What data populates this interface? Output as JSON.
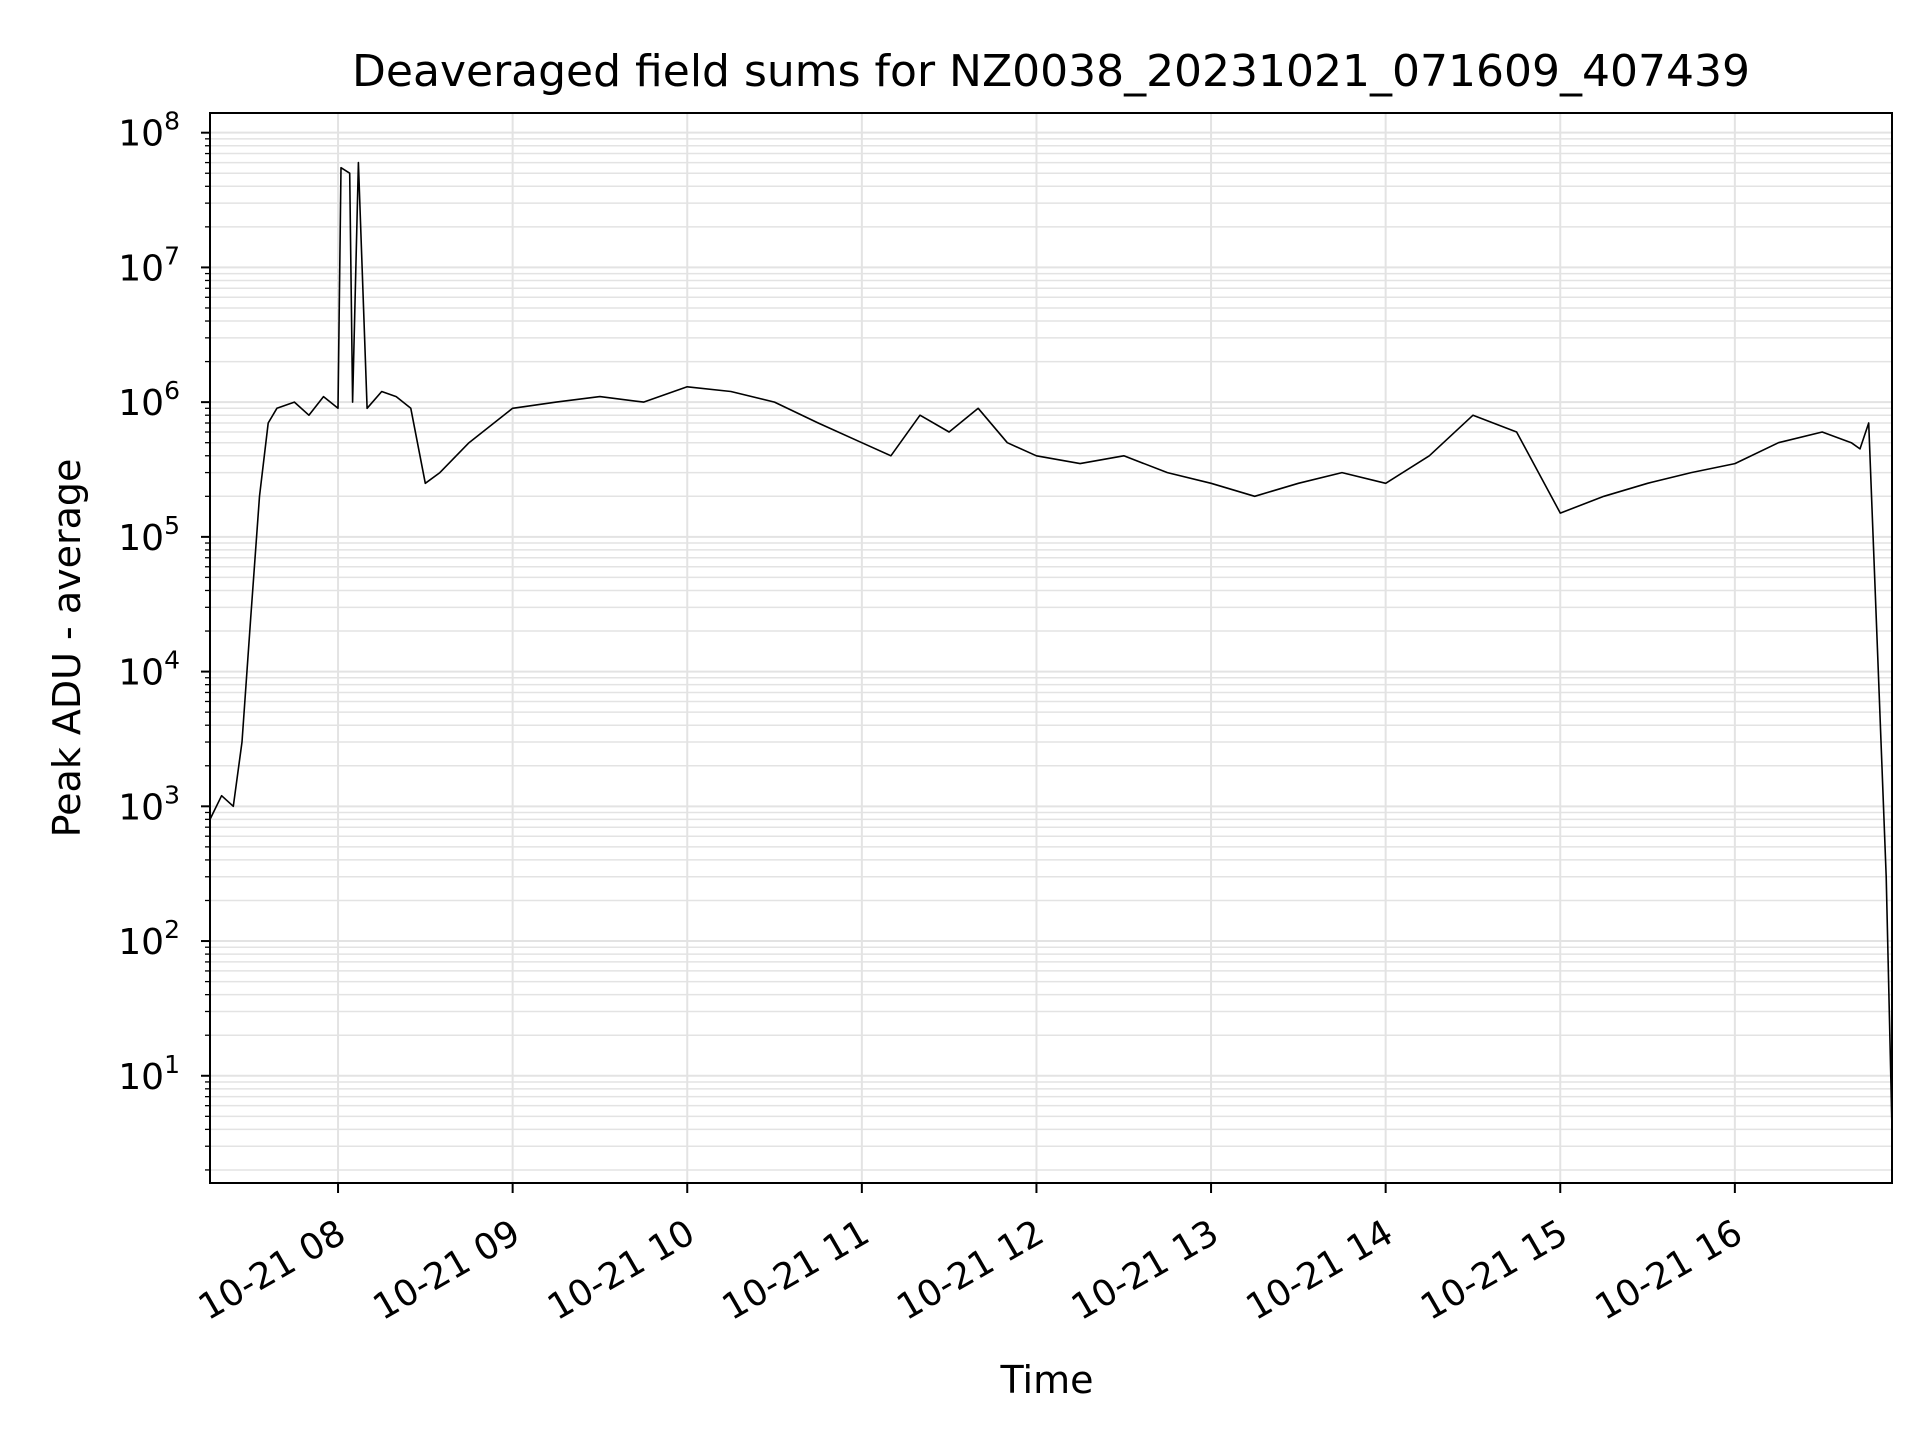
{
  "chart_data": {
    "type": "line",
    "title": "Deaveraged field sums for NZ0038_20231021_071609_407439",
    "xlabel": "Time",
    "ylabel": "Peak ADU - average",
    "yscale": "log",
    "ylim": [
      1.6,
      140000000
    ],
    "xlim": [
      "2023-10-21 07:16",
      "2023-10-21 16:54"
    ],
    "grid": true,
    "x_ticks": [
      "10-21 08",
      "10-21 09",
      "10-21 10",
      "10-21 11",
      "10-21 12",
      "10-21 13",
      "10-21 14",
      "10-21 15",
      "10-21 16"
    ],
    "y_ticks": [
      {
        "base": "10",
        "exp": "1"
      },
      {
        "base": "10",
        "exp": "2"
      },
      {
        "base": "10",
        "exp": "3"
      },
      {
        "base": "10",
        "exp": "4"
      },
      {
        "base": "10",
        "exp": "5"
      },
      {
        "base": "10",
        "exp": "6"
      },
      {
        "base": "10",
        "exp": "7"
      },
      {
        "base": "10",
        "exp": "8"
      }
    ],
    "line_color": "#000000",
    "series": [
      {
        "x": [
          "2023-10-21 07:16",
          "2023-10-21 07:20",
          "2023-10-21 07:24",
          "2023-10-21 07:27",
          "2023-10-21 07:30",
          "2023-10-21 07:33",
          "2023-10-21 07:36",
          "2023-10-21 07:39",
          "2023-10-21 07:45",
          "2023-10-21 07:50",
          "2023-10-21 07:55",
          "2023-10-21 08:00",
          "2023-10-21 08:01",
          "2023-10-21 08:04",
          "2023-10-21 08:05",
          "2023-10-21 08:07",
          "2023-10-21 08:10",
          "2023-10-21 08:15",
          "2023-10-21 08:20",
          "2023-10-21 08:25",
          "2023-10-21 08:30",
          "2023-10-21 08:35",
          "2023-10-21 08:45",
          "2023-10-21 09:00",
          "2023-10-21 09:15",
          "2023-10-21 09:30",
          "2023-10-21 09:45",
          "2023-10-21 10:00",
          "2023-10-21 10:15",
          "2023-10-21 10:30",
          "2023-10-21 10:45",
          "2023-10-21 11:00",
          "2023-10-21 11:10",
          "2023-10-21 11:20",
          "2023-10-21 11:30",
          "2023-10-21 11:40",
          "2023-10-21 11:50",
          "2023-10-21 12:00",
          "2023-10-21 12:15",
          "2023-10-21 12:30",
          "2023-10-21 12:45",
          "2023-10-21 13:00",
          "2023-10-21 13:15",
          "2023-10-21 13:30",
          "2023-10-21 13:45",
          "2023-10-21 14:00",
          "2023-10-21 14:15",
          "2023-10-21 14:30",
          "2023-10-21 14:45",
          "2023-10-21 15:00",
          "2023-10-21 15:15",
          "2023-10-21 15:30",
          "2023-10-21 15:45",
          "2023-10-21 16:00",
          "2023-10-21 16:15",
          "2023-10-21 16:30",
          "2023-10-21 16:40",
          "2023-10-21 16:43",
          "2023-10-21 16:46",
          "2023-10-21 16:49",
          "2023-10-21 16:52",
          "2023-10-21 16:54"
        ],
        "y": [
          800,
          1200,
          1000,
          3000,
          25000,
          200000,
          700000,
          900000,
          1000000,
          800000,
          1100000,
          900000,
          55000000,
          50000000,
          1000000,
          60000000,
          900000,
          1200000,
          1100000,
          900000,
          250000,
          300000,
          500000,
          900000,
          1000000,
          1100000,
          1000000,
          1300000,
          1200000,
          1000000,
          700000,
          500000,
          400000,
          800000,
          600000,
          900000,
          500000,
          400000,
          350000,
          400000,
          300000,
          250000,
          200000,
          250000,
          300000,
          250000,
          400000,
          800000,
          600000,
          150000,
          200000,
          250000,
          300000,
          350000,
          500000,
          600000,
          500000,
          450000,
          700000,
          15000,
          300,
          4
        ]
      }
    ]
  }
}
